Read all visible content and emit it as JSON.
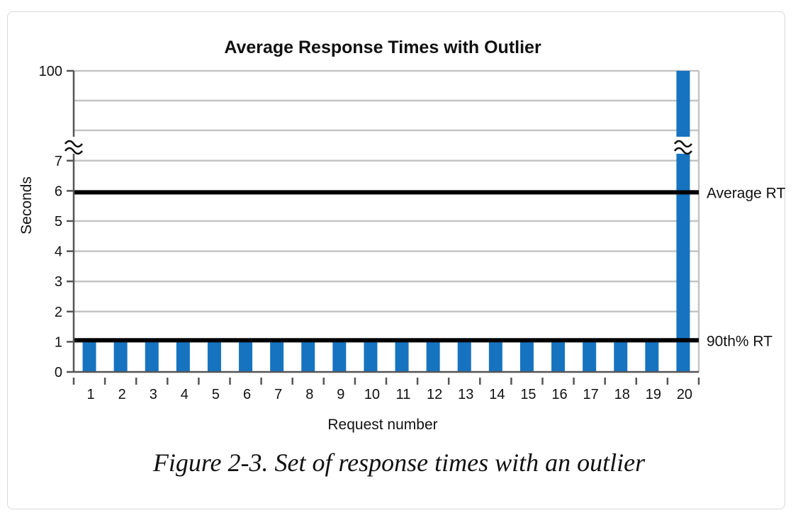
{
  "caption": "Figure 2-3. Set of response times with an outlier",
  "chart_data": {
    "type": "bar",
    "title": "Average Response Times with Outlier",
    "xlabel": "Request number",
    "ylabel": "Seconds",
    "categories": [
      "1",
      "2",
      "3",
      "4",
      "5",
      "6",
      "7",
      "8",
      "9",
      "10",
      "11",
      "12",
      "13",
      "14",
      "15",
      "16",
      "17",
      "18",
      "19",
      "20"
    ],
    "values": [
      1,
      1,
      1,
      1,
      1,
      1,
      1,
      1,
      1,
      1,
      1,
      1,
      1,
      1,
      1,
      1,
      1,
      1,
      1,
      100
    ],
    "ylim": [
      0,
      100
    ],
    "y_axis_break": [
      7,
      100
    ],
    "y_ticks": [
      "0",
      "1",
      "2",
      "3",
      "4",
      "5",
      "6",
      "7",
      "100"
    ],
    "grid": true,
    "bar_color": "#1673c0",
    "reference_lines": [
      {
        "label": "Average RT",
        "value": 5.95
      },
      {
        "label": "90th% RT",
        "value": 1.05
      }
    ]
  }
}
